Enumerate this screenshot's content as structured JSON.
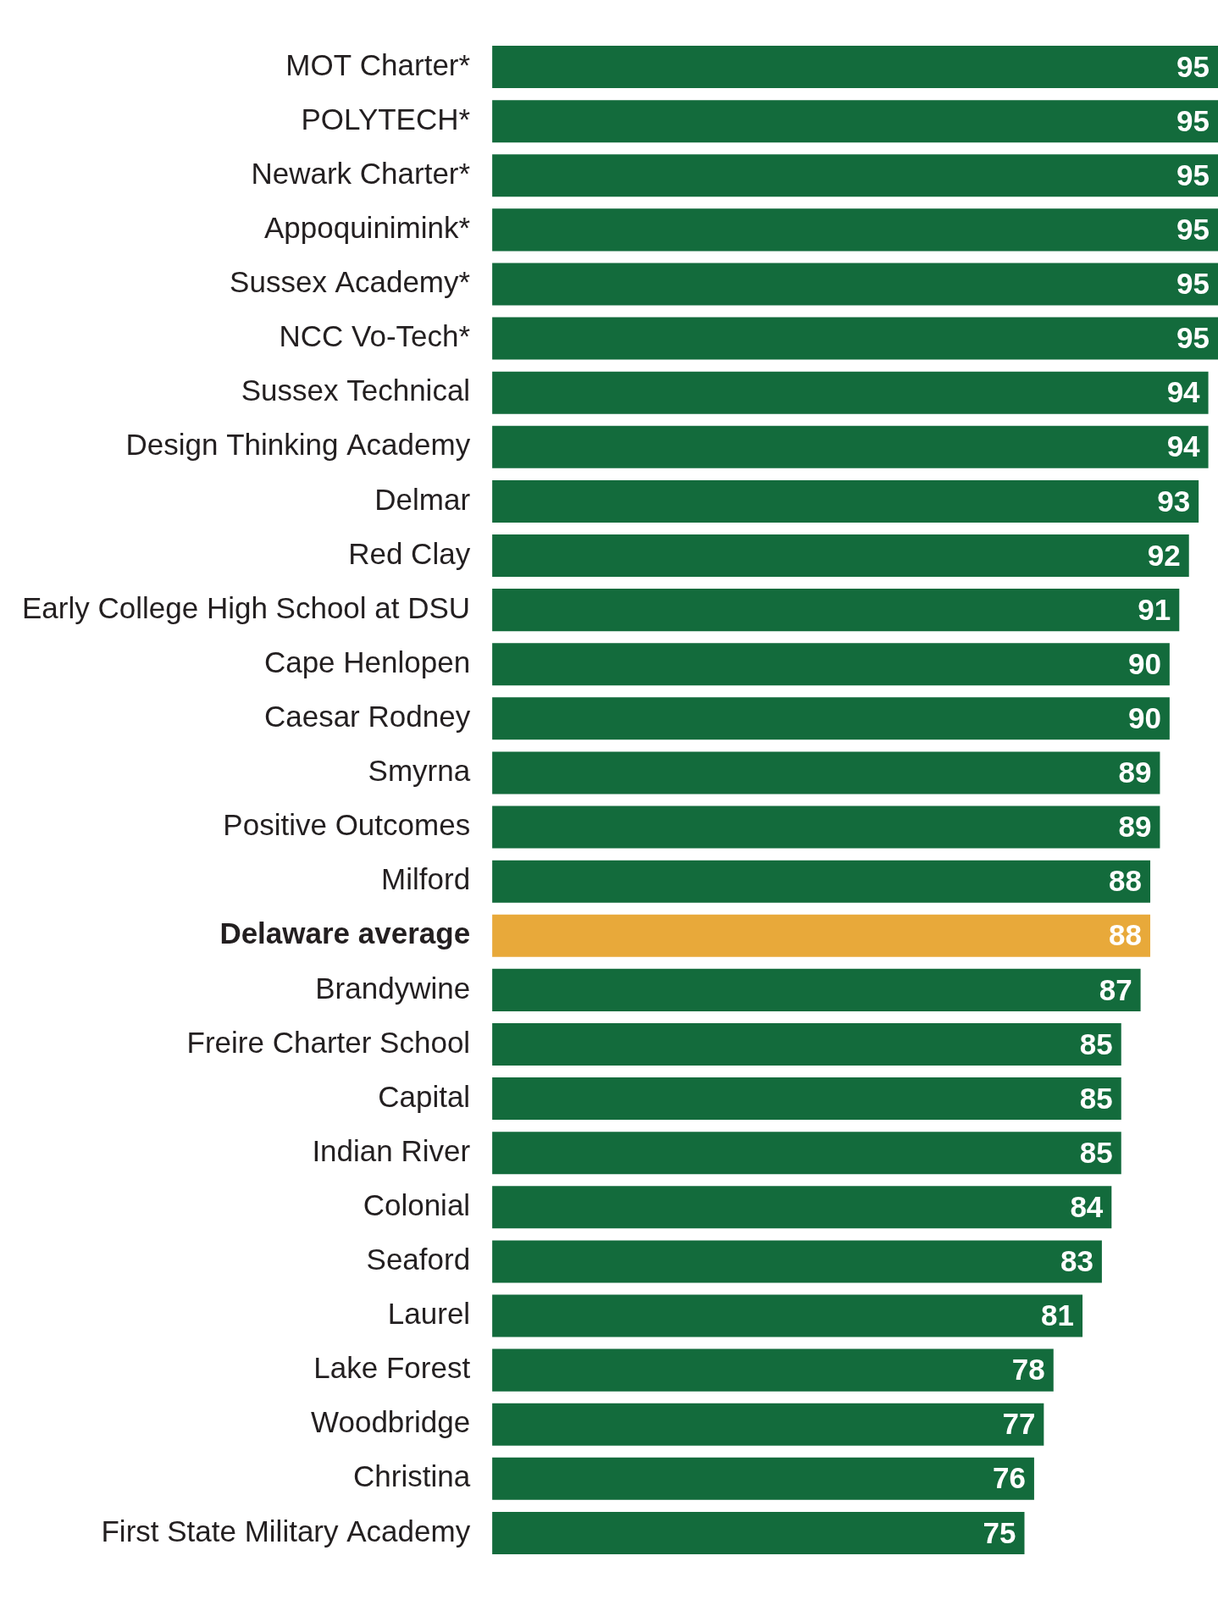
{
  "chart_data": {
    "type": "bar",
    "orientation": "horizontal",
    "categories": [
      "MOT Charter*",
      "POLYTECH*",
      "Newark Charter*",
      "Appoquinimink*",
      "Sussex Academy*",
      "NCC Vo-Tech*",
      "Sussex Technical",
      "Design Thinking Academy",
      "Delmar",
      "Red Clay",
      "Early College High School at DSU",
      "Cape Henlopen",
      "Caesar Rodney",
      "Smyrna",
      "Positive Outcomes",
      "Milford",
      "Delaware average",
      "Brandywine",
      "Freire Charter School",
      "Capital",
      "Indian River",
      "Colonial",
      "Seaford",
      "Laurel",
      "Lake Forest",
      "Woodbridge",
      "Christina",
      "First State Military Academy"
    ],
    "values": [
      95,
      95,
      95,
      95,
      95,
      95,
      94,
      94,
      93,
      92,
      91,
      90,
      90,
      89,
      89,
      88,
      88,
      87,
      85,
      85,
      85,
      84,
      83,
      81,
      78,
      77,
      76,
      75
    ],
    "colors": [
      "#136b3c",
      "#136b3c",
      "#136b3c",
      "#136b3c",
      "#136b3c",
      "#136b3c",
      "#136b3c",
      "#136b3c",
      "#136b3c",
      "#136b3c",
      "#136b3c",
      "#136b3c",
      "#136b3c",
      "#136b3c",
      "#136b3c",
      "#136b3c",
      "#e8a93a",
      "#136b3c",
      "#136b3c",
      "#136b3c",
      "#136b3c",
      "#136b3c",
      "#136b3c",
      "#136b3c",
      "#136b3c",
      "#136b3c",
      "#136b3c",
      "#136b3c"
    ],
    "xlim": [
      20,
      95
    ],
    "data_labels": true,
    "tick_labels": "y",
    "grid": false
  }
}
